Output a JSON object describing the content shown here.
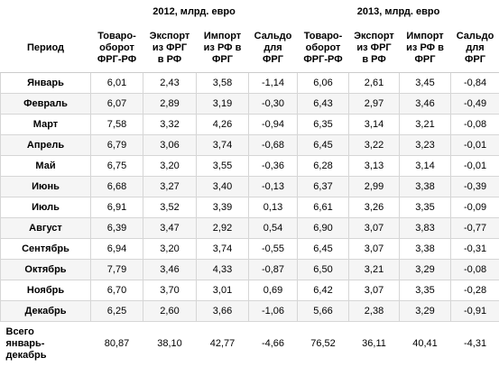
{
  "table": {
    "year_headers": [
      "2012, млрд. евро",
      "2013, млрд. евро"
    ],
    "period_header": "Период",
    "column_headers": [
      "Товаро-\nоборот\nФРГ-РФ",
      "Экспорт\nиз ФРГ\nв РФ",
      "Импорт\nиз РФ в\nФРГ",
      "Сальдо\nдля\nФРГ",
      "Товаро-\nоборот\nФРГ-РФ",
      "Экспорт\nиз ФРГ\nв РФ",
      "Импорт\nиз РФ в\nФРГ",
      "Сальдо\nдля\nФРГ"
    ],
    "rows": [
      [
        "Январь",
        "6,01",
        "2,43",
        "3,58",
        "-1,14",
        "6,06",
        "2,61",
        "3,45",
        "-0,84"
      ],
      [
        "Февраль",
        "6,07",
        "2,89",
        "3,19",
        "-0,30",
        "6,43",
        "2,97",
        "3,46",
        "-0,49"
      ],
      [
        "Март",
        "7,58",
        "3,32",
        "4,26",
        "-0,94",
        "6,35",
        "3,14",
        "3,21",
        "-0,08"
      ],
      [
        "Апрель",
        "6,79",
        "3,06",
        "3,74",
        "-0,68",
        "6,45",
        "3,22",
        "3,23",
        "-0,01"
      ],
      [
        "Май",
        "6,75",
        "3,20",
        "3,55",
        "-0,36",
        "6,28",
        "3,13",
        "3,14",
        "-0,01"
      ],
      [
        "Июнь",
        "6,68",
        "3,27",
        "3,40",
        "-0,13",
        "6,37",
        "2,99",
        "3,38",
        "-0,39"
      ],
      [
        "Июль",
        "6,91",
        "3,52",
        "3,39",
        "0,13",
        "6,61",
        "3,26",
        "3,35",
        "-0,09"
      ],
      [
        "Август",
        "6,39",
        "3,47",
        "2,92",
        "0,54",
        "6,90",
        "3,07",
        "3,83",
        "-0,77"
      ],
      [
        "Сентябрь",
        "6,94",
        "3,20",
        "3,74",
        "-0,55",
        "6,45",
        "3,07",
        "3,38",
        "-0,31"
      ],
      [
        "Октябрь",
        "7,79",
        "3,46",
        "4,33",
        "-0,87",
        "6,50",
        "3,21",
        "3,29",
        "-0,08"
      ],
      [
        "Ноябрь",
        "6,70",
        "3,70",
        "3,01",
        "0,69",
        "6,42",
        "3,07",
        "3,35",
        "-0,28"
      ],
      [
        "Декабрь",
        "6,25",
        "2,60",
        "3,66",
        "-1,06",
        "5,66",
        "2,38",
        "3,29",
        "-0,91"
      ]
    ],
    "total": [
      "Всего\nянварь-\nдекабрь",
      "80,87",
      "38,10",
      "42,77",
      "-4,66",
      "76,52",
      "36,11",
      "40,41",
      "-4,31"
    ]
  }
}
